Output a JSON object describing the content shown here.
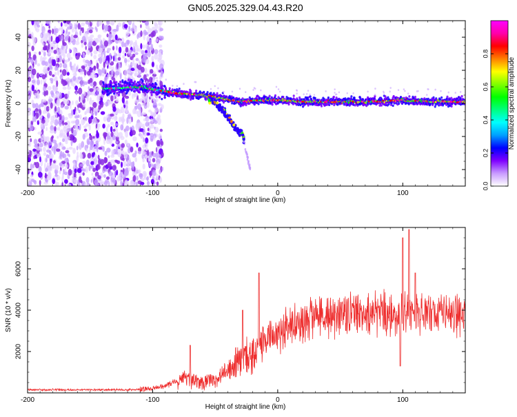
{
  "title": "GN05.2025.329.04.43.R20",
  "chart_data": [
    {
      "type": "heatmap",
      "name": "spectrogram",
      "xlabel": "Height of straight line (km)",
      "ylabel": "Frequency (Hz)",
      "xlim": [
        -200,
        150
      ],
      "ylim": [
        -50,
        50
      ],
      "xticks": [
        -200,
        -100,
        0,
        100
      ],
      "yticks": [
        -40,
        -20,
        0,
        20,
        40
      ],
      "colorbar": {
        "label": "Normalized spectral amplitude",
        "range": [
          0,
          1
        ],
        "ticks": [
          "0.0",
          "0.2",
          "0.4",
          "0.6",
          "0.8"
        ],
        "tick_values": [
          0.0,
          0.2,
          0.4,
          0.6,
          0.8
        ],
        "colors": [
          "#ffffff",
          "#c89bff",
          "#7f00ff",
          "#0000ff",
          "#00a0ff",
          "#00ffff",
          "#00ff80",
          "#00ff00",
          "#80ff00",
          "#ffff00",
          "#ff8000",
          "#ff0000",
          "#ff00aa",
          "#ff00ff"
        ]
      },
      "ridge": [
        {
          "x": -130,
          "y": 9
        },
        {
          "x": -110,
          "y": 10
        },
        {
          "x": -95,
          "y": 8
        },
        {
          "x": -80,
          "y": 6
        },
        {
          "x": -60,
          "y": 5
        },
        {
          "x": -45,
          "y": 3
        },
        {
          "x": -30,
          "y": 1
        },
        {
          "x": -15,
          "y": 2
        },
        {
          "x": 0,
          "y": 2
        },
        {
          "x": 20,
          "y": 1
        },
        {
          "x": 50,
          "y": 1
        },
        {
          "x": 80,
          "y": 1
        },
        {
          "x": 100,
          "y": 2
        },
        {
          "x": 120,
          "y": 1
        },
        {
          "x": 150,
          "y": 1
        }
      ],
      "branch": [
        {
          "x": -55,
          "y": 3
        },
        {
          "x": -45,
          "y": -3
        },
        {
          "x": -38,
          "y": -10
        },
        {
          "x": -33,
          "y": -16
        },
        {
          "x": -28,
          "y": -19
        },
        {
          "x": -25,
          "y": -30
        },
        {
          "x": -22,
          "y": -40
        }
      ],
      "noise_region": {
        "x_from": -200,
        "x_to": -100
      }
    },
    {
      "type": "line",
      "name": "snr",
      "xlabel": "Height of straight line (km)",
      "ylabel": "SNR (10 * v/v)",
      "xlim": [
        -200,
        150
      ],
      "ylim": [
        0,
        8000
      ],
      "xticks": [
        -200,
        -100,
        0,
        100
      ],
      "yticks": [
        2000,
        4000,
        6000
      ],
      "color": "#ee2d2d",
      "trend": [
        {
          "x": -200,
          "y": 150
        },
        {
          "x": -120,
          "y": 150
        },
        {
          "x": -100,
          "y": 200
        },
        {
          "x": -90,
          "y": 350
        },
        {
          "x": -75,
          "y": 700
        },
        {
          "x": -60,
          "y": 500
        },
        {
          "x": -50,
          "y": 600
        },
        {
          "x": -40,
          "y": 1200
        },
        {
          "x": -20,
          "y": 1900
        },
        {
          "x": -10,
          "y": 2500
        },
        {
          "x": 0,
          "y": 3000
        },
        {
          "x": 20,
          "y": 3500
        },
        {
          "x": 40,
          "y": 3800
        },
        {
          "x": 60,
          "y": 3800
        },
        {
          "x": 80,
          "y": 3800
        },
        {
          "x": 100,
          "y": 3700
        },
        {
          "x": 120,
          "y": 3900
        },
        {
          "x": 150,
          "y": 3800
        }
      ],
      "spikes": [
        {
          "x": -70,
          "y": 2300
        },
        {
          "x": -28,
          "y": 4000
        },
        {
          "x": -15,
          "y": 5800
        },
        {
          "x": 100,
          "y": 7500
        },
        {
          "x": 105,
          "y": 7900
        },
        {
          "x": 110,
          "y": 5800
        },
        {
          "x": 98,
          "y": 1300
        }
      ]
    }
  ]
}
